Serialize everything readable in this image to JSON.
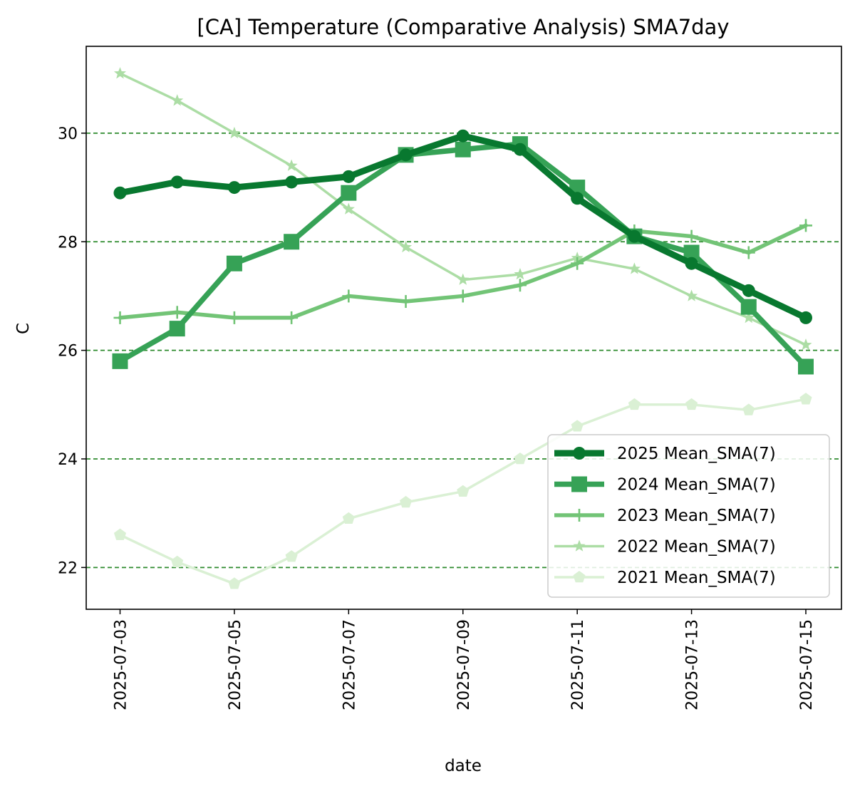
{
  "chart_data": {
    "type": "line",
    "title": "[CA] Temperature (Comparative Analysis) SMA7day",
    "xlabel": "date",
    "ylabel": "C",
    "x": [
      "2025-07-03",
      "2025-07-04",
      "2025-07-05",
      "2025-07-06",
      "2025-07-07",
      "2025-07-08",
      "2025-07-09",
      "2025-07-10",
      "2025-07-11",
      "2025-07-12",
      "2025-07-13",
      "2025-07-14",
      "2025-07-15"
    ],
    "xticks": [
      "2025-07-03",
      "2025-07-05",
      "2025-07-07",
      "2025-07-09",
      "2025-07-11",
      "2025-07-13",
      "2025-07-15"
    ],
    "yticks": [
      22,
      24,
      26,
      28,
      30
    ],
    "ylim": [
      21.23,
      31.6
    ],
    "grid": "horizontal dashed",
    "legend_position": "lower right",
    "series": [
      {
        "name": "2025 Mean_SMA(7)",
        "color": "#08782f",
        "marker": "circle",
        "values": [
          28.9,
          29.1,
          29.0,
          29.1,
          29.2,
          29.6,
          29.95,
          29.7,
          28.8,
          28.1,
          27.6,
          27.1,
          26.6
        ]
      },
      {
        "name": "2024 Mean_SMA(7)",
        "color": "#36a256",
        "marker": "square",
        "values": [
          25.8,
          26.4,
          27.6,
          28.0,
          28.9,
          29.6,
          29.7,
          29.8,
          29.0,
          28.1,
          27.8,
          26.8,
          25.7
        ]
      },
      {
        "name": "2023 Mean_SMA(7)",
        "color": "#72c476",
        "marker": "plus",
        "values": [
          26.6,
          26.7,
          26.6,
          26.6,
          27.0,
          26.9,
          27.0,
          27.2,
          27.6,
          28.2,
          28.1,
          27.8,
          28.3
        ]
      },
      {
        "name": "2022 Mean_SMA(7)",
        "color": "#acdda5",
        "marker": "star",
        "values": [
          31.1,
          30.6,
          30.0,
          29.4,
          28.6,
          27.9,
          27.3,
          27.4,
          27.7,
          27.5,
          27.0,
          26.6,
          26.1
        ]
      },
      {
        "name": "2021 Mean_SMA(7)",
        "color": "#daf0d4",
        "marker": "pentagon",
        "values": [
          22.6,
          22.1,
          21.7,
          22.2,
          22.9,
          23.2,
          23.4,
          24.0,
          24.6,
          25.0,
          25.0,
          24.9,
          25.1
        ]
      }
    ]
  }
}
